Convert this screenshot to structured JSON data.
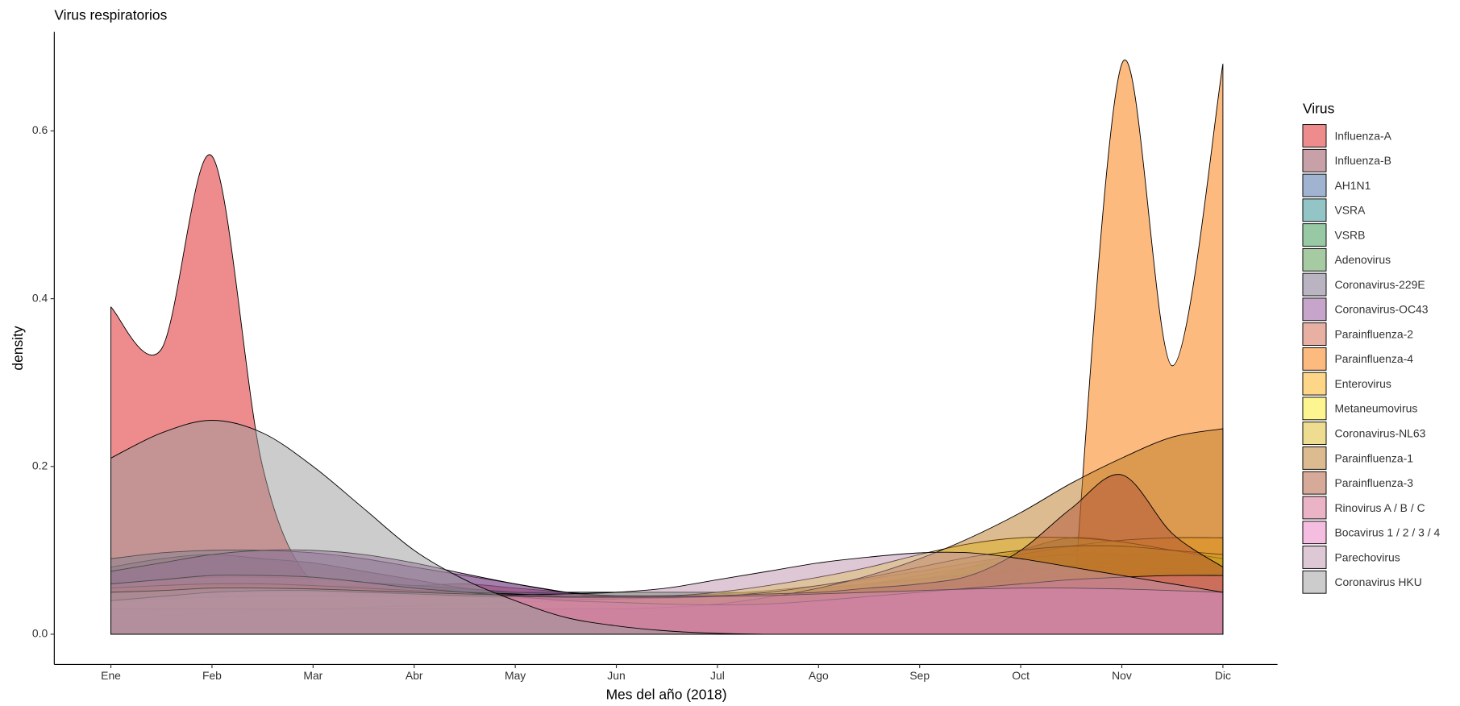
{
  "chart_data": {
    "type": "density",
    "title": "Virus respiratorios",
    "x_label": "Mes del año (2018)",
    "y_label": "density",
    "legend_title": "Virus",
    "legend_position": "right",
    "xlim": [
      0.44,
      12.54
    ],
    "ylim": [
      -0.036,
      0.718
    ],
    "xticks": [
      {
        "value": 1,
        "label": "Ene"
      },
      {
        "value": 2,
        "label": "Feb"
      },
      {
        "value": 3,
        "label": "Mar"
      },
      {
        "value": 4,
        "label": "Abr"
      },
      {
        "value": 5,
        "label": "May"
      },
      {
        "value": 6,
        "label": "Jun"
      },
      {
        "value": 7,
        "label": "Jul"
      },
      {
        "value": 8,
        "label": "Ago"
      },
      {
        "value": 9,
        "label": "Sep"
      },
      {
        "value": 10,
        "label": "Oct"
      },
      {
        "value": 11,
        "label": "Nov"
      },
      {
        "value": 12,
        "label": "Dic"
      }
    ],
    "yticks": [
      {
        "value": 0,
        "label": "0.0"
      },
      0.2,
      0.4,
      0.6
    ],
    "x": [
      1,
      1.5,
      2,
      2.5,
      3,
      3.5,
      4,
      4.5,
      5,
      5.5,
      6,
      6.5,
      7,
      7.5,
      8,
      8.5,
      9,
      9.5,
      10,
      10.5,
      11,
      11.5,
      12
    ],
    "series": [
      {
        "name": "Influenza-A",
        "color": "#DE1A1C",
        "values": [
          0.39,
          0.34,
          0.57,
          0.2,
          0.06,
          0.06,
          0.058,
          0.06,
          0.055,
          0.05,
          0.045,
          0.04,
          0.04,
          0.045,
          0.05,
          0.055,
          0.06,
          0.065,
          0.07,
          0.07,
          0.07,
          0.07,
          0.07
        ]
      },
      {
        "name": "Influenza-B",
        "color": "#92414F",
        "values": [
          0.08,
          0.09,
          0.095,
          0.09,
          0.085,
          0.075,
          0.065,
          0.055,
          0.05,
          0.045,
          0.045,
          0.045,
          0.045,
          0.045,
          0.045,
          0.05,
          0.055,
          0.06,
          0.065,
          0.07,
          0.07,
          0.07,
          0.07
        ]
      },
      {
        "name": "AH1N1",
        "color": "#4169A5",
        "values": [
          0.05,
          0.055,
          0.058,
          0.058,
          0.058,
          0.057,
          0.055,
          0.052,
          0.05,
          0.048,
          0.046,
          0.045,
          0.045,
          0.045,
          0.046,
          0.048,
          0.05,
          0.052,
          0.053,
          0.055,
          0.055,
          0.055,
          0.055
        ]
      },
      {
        "name": "VSRA",
        "color": "#288A8E",
        "values": [
          0.05,
          0.052,
          0.054,
          0.055,
          0.055,
          0.054,
          0.052,
          0.05,
          0.048,
          0.046,
          0.045,
          0.045,
          0.046,
          0.048,
          0.052,
          0.058,
          0.065,
          0.08,
          0.1,
          0.115,
          0.11,
          0.1,
          0.09
        ]
      },
      {
        "name": "VSRB",
        "color": "#30934B",
        "values": [
          0.05,
          0.05,
          0.05,
          0.05,
          0.05,
          0.05,
          0.05,
          0.05,
          0.05,
          0.05,
          0.05,
          0.05,
          0.05,
          0.05,
          0.055,
          0.06,
          0.07,
          0.08,
          0.09,
          0.095,
          0.095,
          0.095,
          0.09
        ]
      },
      {
        "name": "Adenovirus",
        "color": "#4D9745",
        "values": [
          0.06,
          0.065,
          0.068,
          0.068,
          0.066,
          0.062,
          0.058,
          0.054,
          0.05,
          0.048,
          0.046,
          0.046,
          0.047,
          0.05,
          0.054,
          0.06,
          0.066,
          0.072,
          0.078,
          0.082,
          0.085,
          0.085,
          0.085
        ]
      },
      {
        "name": "Coronavirus-229E",
        "color": "#756985",
        "values": [
          0.09,
          0.097,
          0.1,
          0.1,
          0.097,
          0.09,
          0.08,
          0.07,
          0.06,
          0.05,
          0.04,
          0.032,
          0.028,
          0.03,
          0.035,
          0.045,
          0.055,
          0.065,
          0.075,
          0.08,
          0.08,
          0.078,
          0.075
        ]
      },
      {
        "name": "Coronavirus-OC43",
        "color": "#8F4993",
        "values": [
          0.075,
          0.085,
          0.095,
          0.1,
          0.1,
          0.095,
          0.085,
          0.072,
          0.06,
          0.05,
          0.045,
          0.045,
          0.045,
          0.05,
          0.055,
          0.06,
          0.065,
          0.07,
          0.075,
          0.08,
          0.08,
          0.078,
          0.075
        ]
      },
      {
        "name": "Parainfluenza-2",
        "color": "#D16145",
        "values": [
          0.055,
          0.058,
          0.06,
          0.06,
          0.058,
          0.055,
          0.052,
          0.05,
          0.048,
          0.045,
          0.042,
          0.04,
          0.04,
          0.042,
          0.045,
          0.05,
          0.055,
          0.06,
          0.065,
          0.07,
          0.072,
          0.073,
          0.073
        ]
      },
      {
        "name": "Parainfluenza-4",
        "color": "#FB7500",
        "values": [
          null,
          null,
          null,
          null,
          null,
          null,
          null,
          null,
          null,
          null,
          null,
          null,
          null,
          null,
          null,
          null,
          null,
          null,
          null,
          0,
          0.68,
          0.32,
          0.68
        ]
      },
      {
        "name": "Enterovirus",
        "color": "#FBAF0F",
        "values": [
          0.04,
          0.042,
          0.044,
          0.045,
          0.045,
          0.045,
          0.045,
          0.045,
          0.045,
          0.045,
          0.045,
          0.046,
          0.048,
          0.052,
          0.058,
          0.066,
          0.075,
          0.085,
          0.095,
          0.105,
          0.112,
          0.115,
          0.115
        ]
      },
      {
        "name": "Metaneumovirus",
        "color": "#FBEB21",
        "values": [
          0.02,
          0.022,
          0.025,
          0.028,
          0.03,
          0.032,
          0.034,
          0.036,
          0.038,
          0.04,
          0.042,
          0.045,
          0.05,
          0.058,
          0.068,
          0.08,
          0.095,
          0.108,
          0.115,
          0.115,
          0.11,
          0.1,
          0.09
        ]
      },
      {
        "name": "Coronavirus-NL63",
        "color": "#DDBB21",
        "values": [
          0.04,
          0.045,
          0.05,
          0.052,
          0.052,
          0.05,
          0.048,
          0.045,
          0.043,
          0.042,
          0.042,
          0.043,
          0.045,
          0.05,
          0.058,
          0.068,
          0.08,
          0.092,
          0.1,
          0.105,
          0.105,
          0.1,
          0.095
        ]
      },
      {
        "name": "Parainfluenza-1",
        "color": "#BB7721",
        "values": [
          0.03,
          0.03,
          0.03,
          0.03,
          0.03,
          0.03,
          0.03,
          0.03,
          0.03,
          0.03,
          0.03,
          0.032,
          0.036,
          0.044,
          0.055,
          0.07,
          0.09,
          0.115,
          0.145,
          0.18,
          0.21,
          0.235,
          0.245
        ]
      },
      {
        "name": "Parainfluenza-3",
        "color": "#B05333",
        "values": [
          0.05,
          0.052,
          0.055,
          0.055,
          0.054,
          0.052,
          0.05,
          0.048,
          0.046,
          0.045,
          0.045,
          0.045,
          0.046,
          0.048,
          0.05,
          0.055,
          0.06,
          0.07,
          0.1,
          0.15,
          0.19,
          0.12,
          0.08
        ]
      },
      {
        "name": "Rinovirus A / B / C",
        "color": "#D5678D",
        "values": [
          0.06,
          0.065,
          0.07,
          0.07,
          0.068,
          0.062,
          0.055,
          0.05,
          0.045,
          0.04,
          0.038,
          0.036,
          0.035,
          0.036,
          0.04,
          0.045,
          0.05,
          0.055,
          0.06,
          0.065,
          0.068,
          0.07,
          0.07
        ]
      },
      {
        "name": "Bocavirus 1 / 2 / 3 / 4",
        "color": "#EB7BC1",
        "values": [
          0.04,
          0.045,
          0.05,
          0.052,
          0.052,
          0.05,
          0.048,
          0.046,
          0.045,
          0.044,
          0.044,
          0.044,
          0.045,
          0.046,
          0.048,
          0.05,
          0.052,
          0.054,
          0.055,
          0.055,
          0.054,
          0.052,
          0.05
        ]
      },
      {
        "name": "Parechovirus",
        "color": "#BF91AD",
        "values": [
          0.05,
          0.052,
          0.055,
          0.055,
          0.054,
          0.052,
          0.05,
          0.048,
          0.047,
          0.048,
          0.05,
          0.055,
          0.065,
          0.075,
          0.085,
          0.092,
          0.097,
          0.097,
          0.09,
          0.08,
          0.07,
          0.06,
          0.05
        ]
      },
      {
        "name": "Coronavirus HKU",
        "color": "#999999",
        "values": [
          0.21,
          0.24,
          0.255,
          0.24,
          0.2,
          0.15,
          0.1,
          0.065,
          0.04,
          0.02,
          0.01,
          0.004,
          0.001,
          0,
          null,
          null,
          null,
          null,
          null,
          null,
          null,
          null,
          null
        ]
      }
    ]
  }
}
